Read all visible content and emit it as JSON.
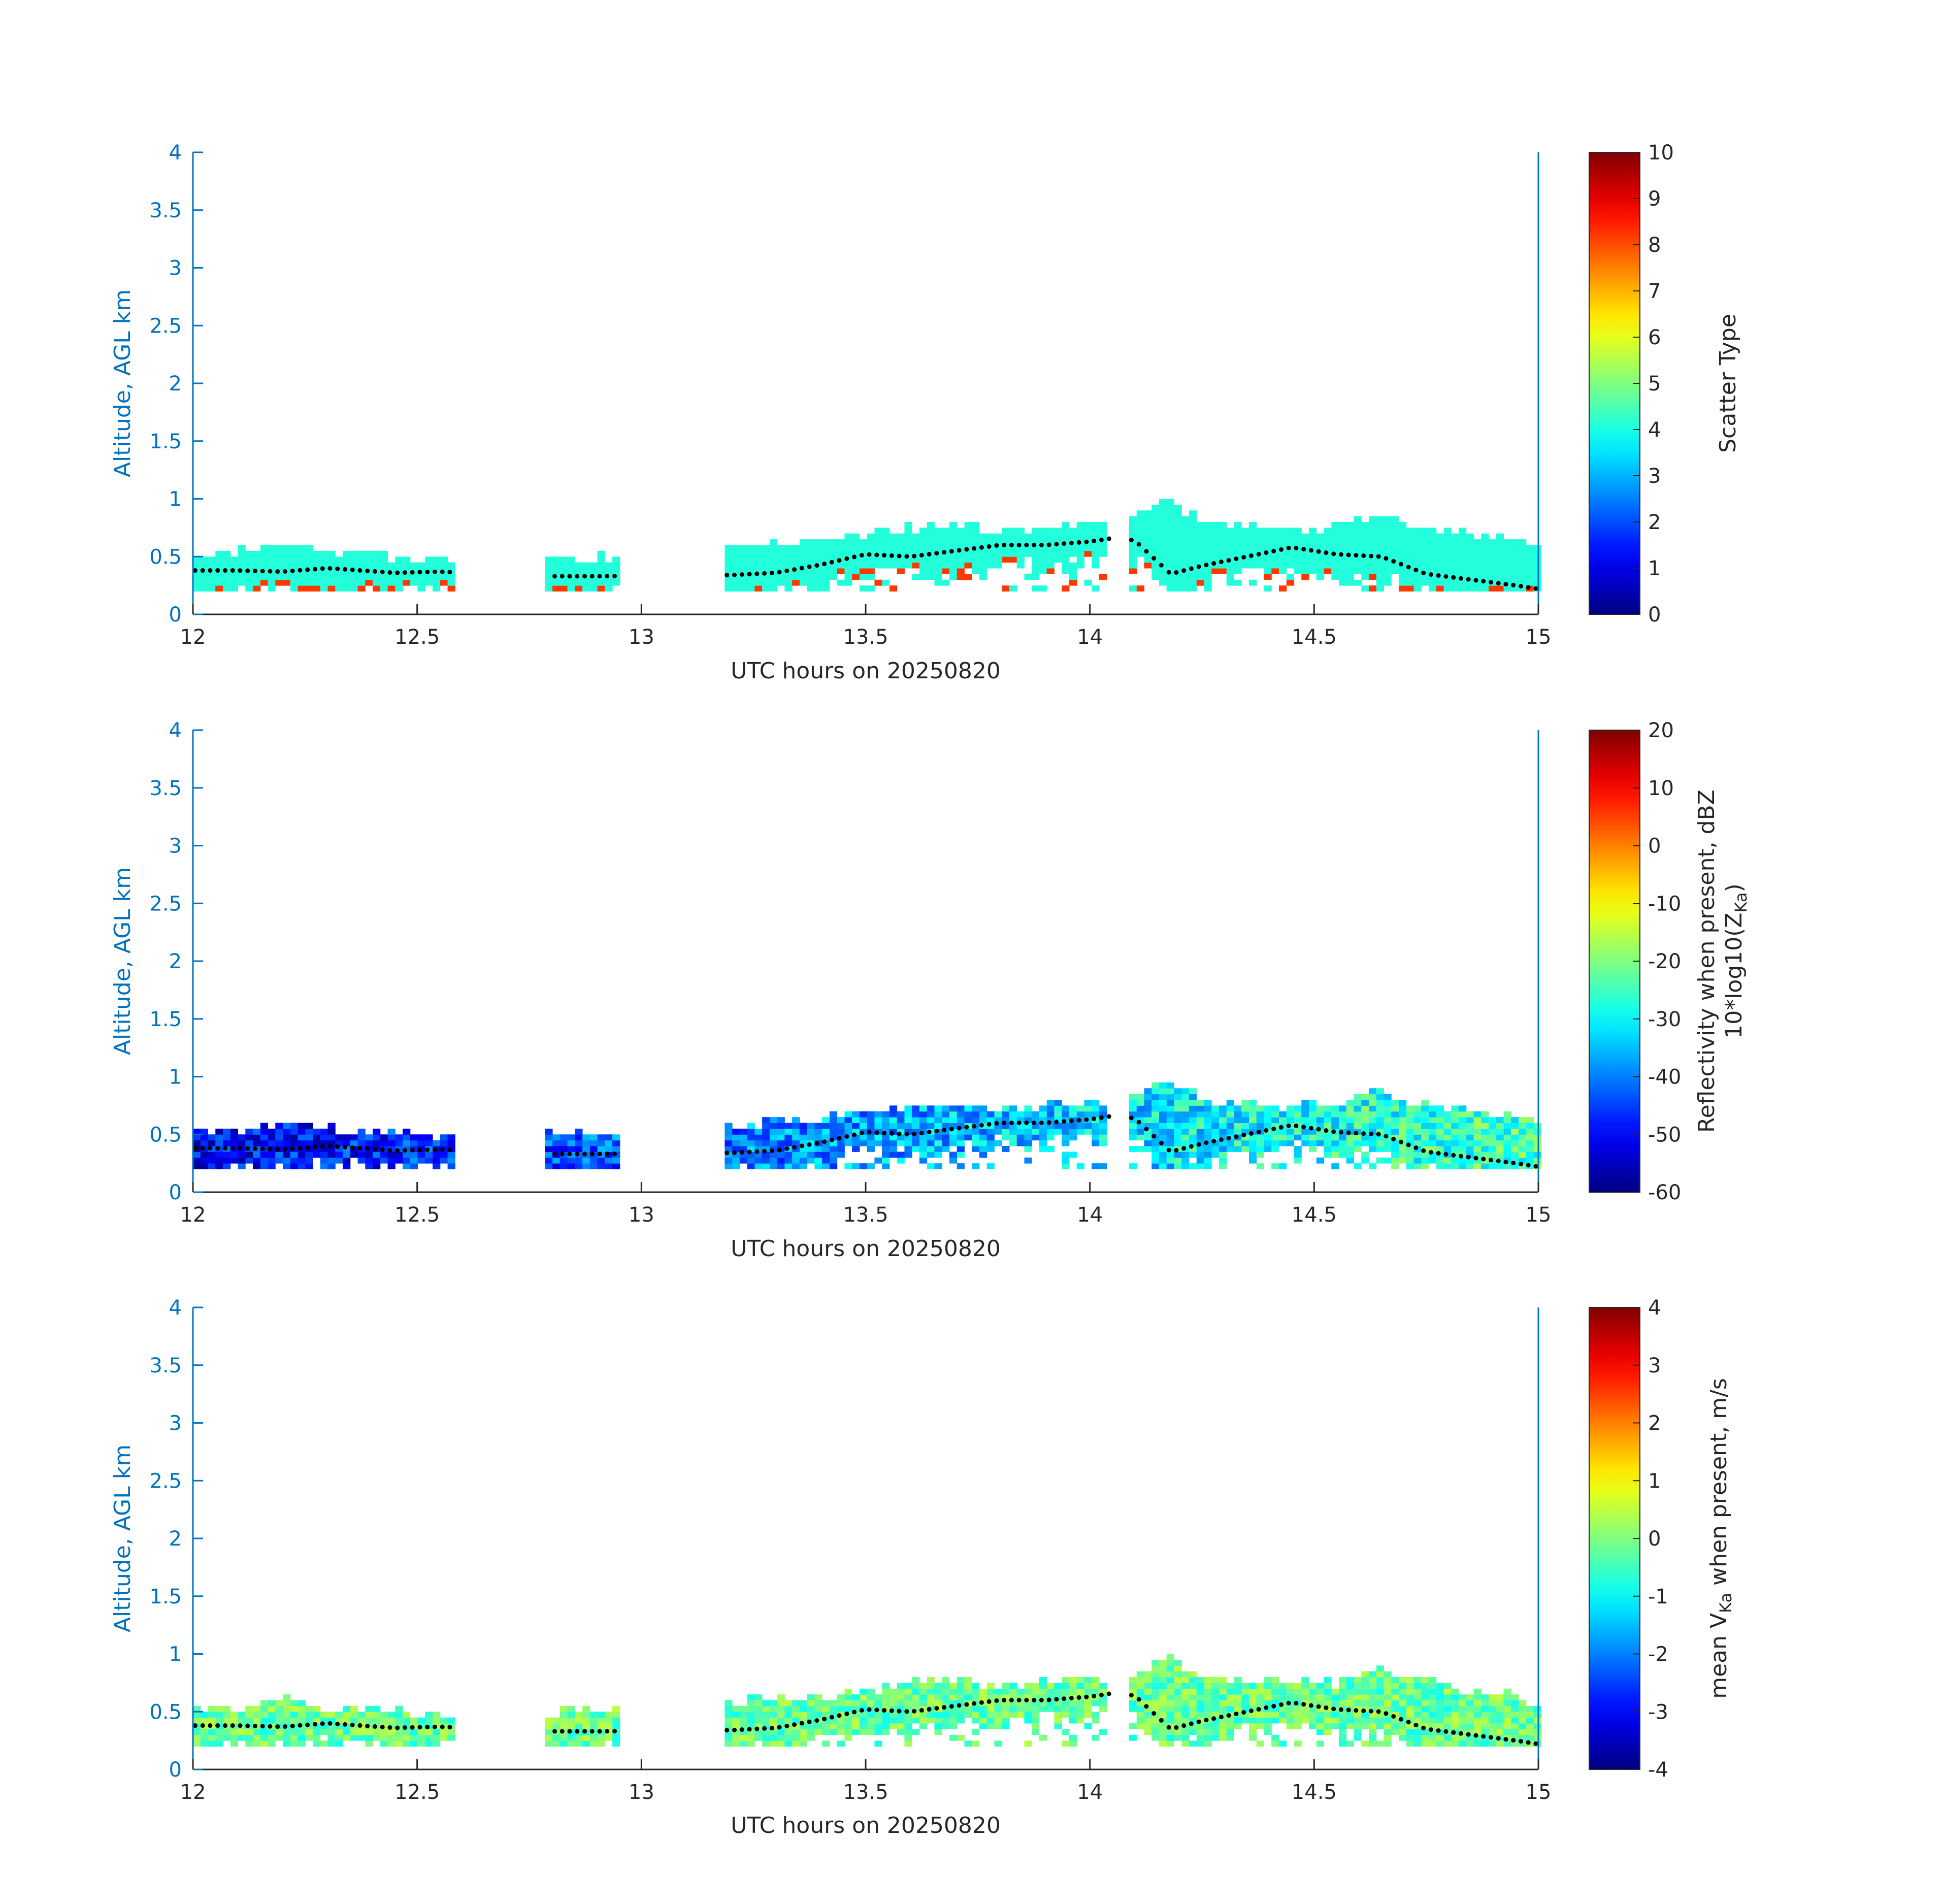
{
  "chart_data": [
    {
      "type": "heatmap",
      "xlabel": "UTC hours on 20250820",
      "ylabel": "Altitude, AGL km",
      "xlim": [
        12,
        15
      ],
      "ylim": [
        0,
        4
      ],
      "xticks": [
        12,
        12.5,
        13,
        13.5,
        14,
        14.5,
        15
      ],
      "xtick_labels": [
        "12",
        "12.5",
        "13",
        "13.5",
        "14",
        "14.5",
        "15"
      ],
      "yticks": [
        0,
        0.5,
        1,
        1.5,
        2,
        2.5,
        3,
        3.5,
        4
      ],
      "ytick_labels": [
        "0",
        "0.5",
        "1",
        "1.5",
        "2",
        "2.5",
        "3",
        "3.5",
        "4"
      ],
      "colorbar": {
        "label": "Scatter Type",
        "clim": [
          0,
          10
        ],
        "ticks": [
          0,
          1,
          2,
          3,
          4,
          5,
          6,
          7,
          8,
          9,
          10
        ],
        "tick_labels": [
          "0",
          "1",
          "2",
          "3",
          "4",
          "5",
          "6",
          "7",
          "8",
          "9",
          "10"
        ],
        "colormap": "jet"
      },
      "colormap_value_range": [
        3.8,
        8.2
      ],
      "cloud_top_km": [
        [
          12.0,
          0.5
        ],
        [
          12.1,
          0.52
        ],
        [
          12.2,
          0.58
        ],
        [
          12.3,
          0.52
        ],
        [
          12.45,
          0.48
        ],
        [
          12.55,
          0.46
        ],
        [
          12.8,
          0.47
        ],
        [
          12.9,
          0.47
        ],
        [
          13.2,
          0.55
        ],
        [
          13.3,
          0.6
        ],
        [
          13.4,
          0.62
        ],
        [
          13.5,
          0.66
        ],
        [
          13.6,
          0.72
        ],
        [
          13.7,
          0.74
        ],
        [
          13.8,
          0.7
        ],
        [
          13.9,
          0.74
        ],
        [
          14.0,
          0.76
        ],
        [
          14.05,
          0.7
        ],
        [
          14.1,
          0.82
        ],
        [
          14.18,
          0.95
        ],
        [
          14.25,
          0.78
        ],
        [
          14.35,
          0.76
        ],
        [
          14.45,
          0.72
        ],
        [
          14.55,
          0.74
        ],
        [
          14.65,
          0.85
        ],
        [
          14.75,
          0.72
        ],
        [
          14.85,
          0.66
        ],
        [
          14.95,
          0.64
        ],
        [
          15.0,
          0.55
        ]
      ],
      "cloud_base_km": [
        [
          12.0,
          0.38
        ],
        [
          12.1,
          0.38
        ],
        [
          12.2,
          0.37
        ],
        [
          12.3,
          0.4
        ],
        [
          12.45,
          0.36
        ],
        [
          12.55,
          0.37
        ],
        [
          12.8,
          0.33
        ],
        [
          12.9,
          0.33
        ],
        [
          13.2,
          0.34
        ],
        [
          13.3,
          0.36
        ],
        [
          13.4,
          0.43
        ],
        [
          13.5,
          0.52
        ],
        [
          13.6,
          0.5
        ],
        [
          13.7,
          0.55
        ],
        [
          13.8,
          0.6
        ],
        [
          13.9,
          0.6
        ],
        [
          14.0,
          0.63
        ],
        [
          14.05,
          0.66
        ],
        [
          14.1,
          0.64
        ],
        [
          14.18,
          0.35
        ],
        [
          14.25,
          0.42
        ],
        [
          14.35,
          0.5
        ],
        [
          14.45,
          0.58
        ],
        [
          14.55,
          0.52
        ],
        [
          14.65,
          0.5
        ],
        [
          14.75,
          0.35
        ],
        [
          14.85,
          0.3
        ],
        [
          14.95,
          0.25
        ],
        [
          15.0,
          0.22
        ]
      ]
    },
    {
      "type": "heatmap",
      "xlabel": "UTC hours on 20250820",
      "ylabel": "Altitude, AGL km",
      "xlim": [
        12,
        15
      ],
      "ylim": [
        0,
        4
      ],
      "xticks": [
        12,
        12.5,
        13,
        13.5,
        14,
        14.5,
        15
      ],
      "xtick_labels": [
        "12",
        "12.5",
        "13",
        "13.5",
        "14",
        "14.5",
        "15"
      ],
      "yticks": [
        0,
        0.5,
        1,
        1.5,
        2,
        2.5,
        3,
        3.5,
        4
      ],
      "ytick_labels": [
        "0",
        "0.5",
        "1",
        "1.5",
        "2",
        "2.5",
        "3",
        "3.5",
        "4"
      ],
      "colorbar": {
        "label_line1": "Reflectivity when present, dBZ",
        "label_line2_prefix": "10*log10(Z",
        "label_line2_sub": "Ka",
        "label_line2_suffix": ")",
        "clim": [
          -60,
          20
        ],
        "ticks": [
          -60,
          -50,
          -40,
          -30,
          -20,
          -10,
          0,
          10,
          20
        ],
        "tick_labels": [
          "-60",
          "-50",
          "-40",
          "-30",
          "-20",
          "-10",
          "0",
          "10",
          "20"
        ],
        "colormap": "jet"
      },
      "colormap_value_range": [
        -60,
        -15
      ]
    },
    {
      "type": "heatmap",
      "xlabel": "UTC hours on 20250820",
      "ylabel": "Altitude, AGL km",
      "xlim": [
        12,
        15
      ],
      "ylim": [
        0,
        4
      ],
      "xticks": [
        12,
        12.5,
        13,
        13.5,
        14,
        14.5,
        15
      ],
      "xtick_labels": [
        "12",
        "12.5",
        "13",
        "13.5",
        "14",
        "14.5",
        "15"
      ],
      "yticks": [
        0,
        0.5,
        1,
        1.5,
        2,
        2.5,
        3,
        3.5,
        4
      ],
      "ytick_labels": [
        "0",
        "0.5",
        "1",
        "1.5",
        "2",
        "2.5",
        "3",
        "3.5",
        "4"
      ],
      "colorbar": {
        "label_prefix": "mean V",
        "label_sub": "Ka",
        "label_suffix": " when present, m/s",
        "clim": [
          -4,
          4
        ],
        "ticks": [
          -4,
          -3,
          -2,
          -1,
          0,
          1,
          2,
          3,
          4
        ],
        "tick_labels": [
          "-4",
          "-3",
          "-2",
          "-1",
          "0",
          "1",
          "2",
          "3",
          "4"
        ],
        "colormap": "jet"
      },
      "colormap_value_range": [
        -2,
        2
      ]
    }
  ],
  "colors": {
    "axis": "#0072bd",
    "text": "#262626",
    "dots": "#000000"
  }
}
